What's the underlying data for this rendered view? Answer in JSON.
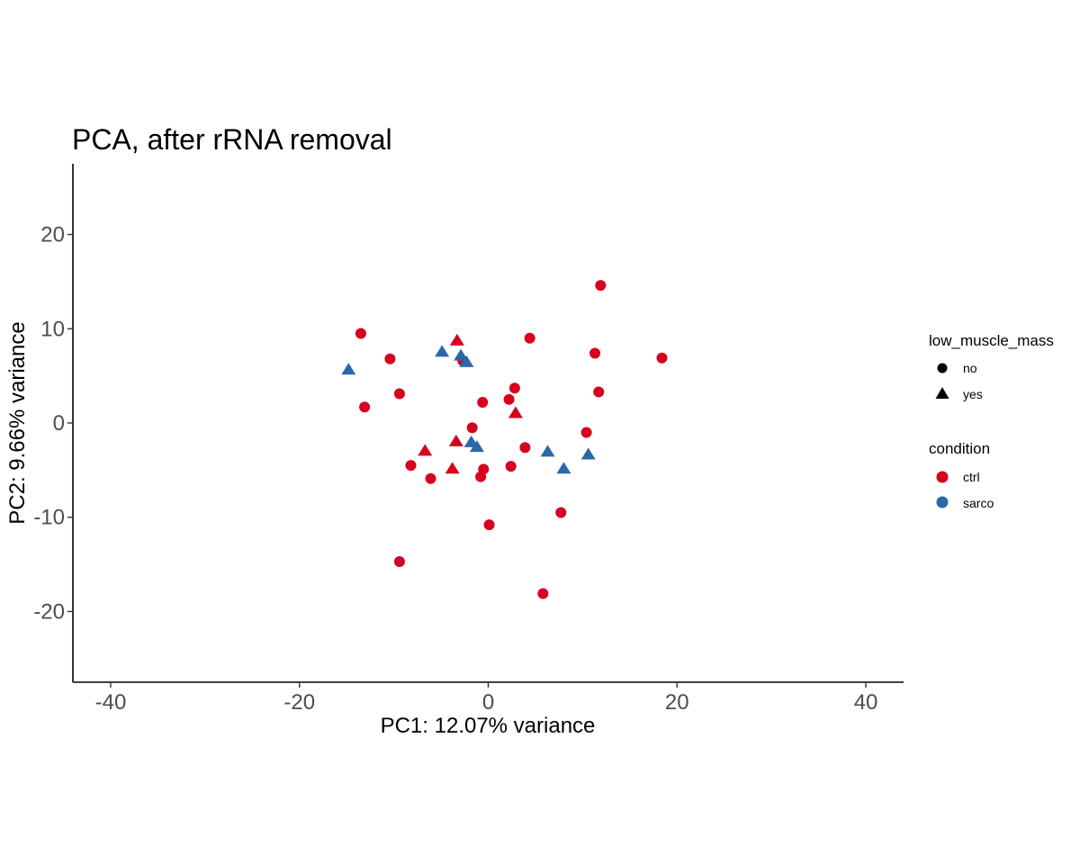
{
  "chart_data": {
    "type": "scatter",
    "title": "PCA, after rRNA removal",
    "xlabel": "PC1: 12.07% variance",
    "ylabel": "PC2: 9.66% variance",
    "xlim": [
      -44,
      44
    ],
    "ylim": [
      -27.5,
      27.5
    ],
    "x_ticks": [
      -40,
      -20,
      0,
      20,
      40
    ],
    "y_ticks": [
      -20,
      -10,
      0,
      10,
      20
    ],
    "x_tick_labels": [
      "-40",
      "-20",
      "0",
      "20",
      "40"
    ],
    "y_tick_labels": [
      "-20",
      "-10",
      "0",
      "10",
      "20"
    ],
    "grid": false,
    "legend": {
      "placement": "right",
      "shape": {
        "title": "low_muscle_mass",
        "items": [
          {
            "label": "no",
            "shape": "circle"
          },
          {
            "label": "yes",
            "shape": "triangle"
          }
        ]
      },
      "color": {
        "title": "condition",
        "items": [
          {
            "label": "ctrl",
            "color": "#D7001E"
          },
          {
            "label": "sarco",
            "color": "#2A69A8"
          }
        ]
      }
    },
    "colors": {
      "ctrl": "#D7001E",
      "sarco": "#2A69A8",
      "legend_shape": "#000000"
    },
    "points": [
      {
        "x": 11.9,
        "y": 14.6,
        "condition": "ctrl",
        "low_muscle_mass": "no"
      },
      {
        "x": -13.5,
        "y": 9.5,
        "condition": "ctrl",
        "low_muscle_mass": "no"
      },
      {
        "x": 4.4,
        "y": 9.0,
        "condition": "ctrl",
        "low_muscle_mass": "no"
      },
      {
        "x": 11.3,
        "y": 7.4,
        "condition": "ctrl",
        "low_muscle_mass": "no"
      },
      {
        "x": 18.4,
        "y": 6.9,
        "condition": "ctrl",
        "low_muscle_mass": "no"
      },
      {
        "x": -10.4,
        "y": 6.8,
        "condition": "ctrl",
        "low_muscle_mass": "no"
      },
      {
        "x": -2.7,
        "y": 6.6,
        "condition": "ctrl",
        "low_muscle_mass": "no"
      },
      {
        "x": 2.8,
        "y": 3.7,
        "condition": "ctrl",
        "low_muscle_mass": "no"
      },
      {
        "x": 11.7,
        "y": 3.3,
        "condition": "ctrl",
        "low_muscle_mass": "no"
      },
      {
        "x": -9.4,
        "y": 3.1,
        "condition": "ctrl",
        "low_muscle_mass": "no"
      },
      {
        "x": 2.2,
        "y": 2.5,
        "condition": "ctrl",
        "low_muscle_mass": "no"
      },
      {
        "x": -0.6,
        "y": 2.2,
        "condition": "ctrl",
        "low_muscle_mass": "no"
      },
      {
        "x": -13.1,
        "y": 1.7,
        "condition": "ctrl",
        "low_muscle_mass": "no"
      },
      {
        "x": -1.7,
        "y": -0.5,
        "condition": "ctrl",
        "low_muscle_mass": "no"
      },
      {
        "x": 10.4,
        "y": -1.0,
        "condition": "ctrl",
        "low_muscle_mass": "no"
      },
      {
        "x": 3.9,
        "y": -2.6,
        "condition": "ctrl",
        "low_muscle_mass": "no"
      },
      {
        "x": -8.2,
        "y": -4.5,
        "condition": "ctrl",
        "low_muscle_mass": "no"
      },
      {
        "x": 2.4,
        "y": -4.6,
        "condition": "ctrl",
        "low_muscle_mass": "no"
      },
      {
        "x": -0.5,
        "y": -4.9,
        "condition": "ctrl",
        "low_muscle_mass": "no"
      },
      {
        "x": -0.8,
        "y": -5.7,
        "condition": "ctrl",
        "low_muscle_mass": "no"
      },
      {
        "x": -6.1,
        "y": -5.9,
        "condition": "ctrl",
        "low_muscle_mass": "no"
      },
      {
        "x": 7.7,
        "y": -9.5,
        "condition": "ctrl",
        "low_muscle_mass": "no"
      },
      {
        "x": 0.1,
        "y": -10.8,
        "condition": "ctrl",
        "low_muscle_mass": "no"
      },
      {
        "x": -9.4,
        "y": -14.7,
        "condition": "ctrl",
        "low_muscle_mass": "no"
      },
      {
        "x": 5.8,
        "y": -18.1,
        "condition": "ctrl",
        "low_muscle_mass": "no"
      },
      {
        "x": -3.3,
        "y": 8.7,
        "condition": "ctrl",
        "low_muscle_mass": "yes"
      },
      {
        "x": 2.9,
        "y": 1.0,
        "condition": "ctrl",
        "low_muscle_mass": "yes"
      },
      {
        "x": -3.4,
        "y": -2.0,
        "condition": "ctrl",
        "low_muscle_mass": "yes"
      },
      {
        "x": -6.7,
        "y": -3.0,
        "condition": "ctrl",
        "low_muscle_mass": "yes"
      },
      {
        "x": -3.8,
        "y": -4.9,
        "condition": "ctrl",
        "low_muscle_mass": "yes"
      },
      {
        "x": -14.8,
        "y": 5.6,
        "condition": "sarco",
        "low_muscle_mass": "yes"
      },
      {
        "x": -4.9,
        "y": 7.5,
        "condition": "sarco",
        "low_muscle_mass": "yes"
      },
      {
        "x": -2.9,
        "y": 7.1,
        "condition": "sarco",
        "low_muscle_mass": "yes"
      },
      {
        "x": -2.3,
        "y": 6.4,
        "condition": "sarco",
        "low_muscle_mass": "yes"
      },
      {
        "x": -1.8,
        "y": -2.1,
        "condition": "sarco",
        "low_muscle_mass": "yes"
      },
      {
        "x": -1.2,
        "y": -2.6,
        "condition": "sarco",
        "low_muscle_mass": "yes"
      },
      {
        "x": 6.3,
        "y": -3.1,
        "condition": "sarco",
        "low_muscle_mass": "yes"
      },
      {
        "x": 8.0,
        "y": -4.9,
        "condition": "sarco",
        "low_muscle_mass": "yes"
      },
      {
        "x": 10.6,
        "y": -3.4,
        "condition": "sarco",
        "low_muscle_mass": "yes"
      }
    ]
  }
}
